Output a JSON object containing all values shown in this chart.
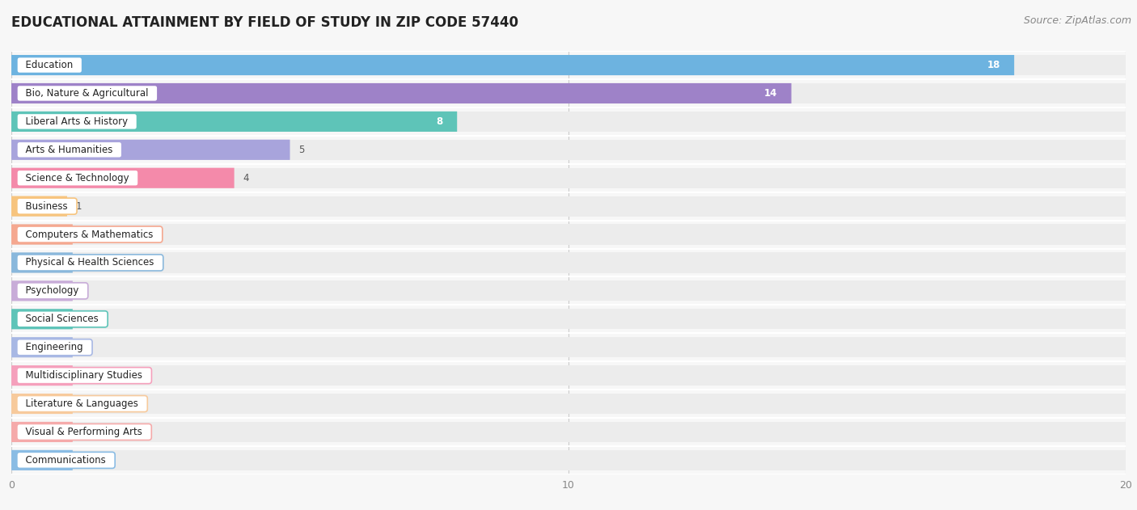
{
  "title": "EDUCATIONAL ATTAINMENT BY FIELD OF STUDY IN ZIP CODE 57440",
  "source": "Source: ZipAtlas.com",
  "categories": [
    "Education",
    "Bio, Nature & Agricultural",
    "Liberal Arts & History",
    "Arts & Humanities",
    "Science & Technology",
    "Business",
    "Computers & Mathematics",
    "Physical & Health Sciences",
    "Psychology",
    "Social Sciences",
    "Engineering",
    "Multidisciplinary Studies",
    "Literature & Languages",
    "Visual & Performing Arts",
    "Communications"
  ],
  "values": [
    18,
    14,
    8,
    5,
    4,
    1,
    0,
    0,
    0,
    0,
    0,
    0,
    0,
    0,
    0
  ],
  "bar_colors": [
    "#6db3e0",
    "#9e82c8",
    "#5ec4b8",
    "#a8a4dc",
    "#f48aaa",
    "#f7c47e",
    "#f5a890",
    "#8ab8dc",
    "#c8acd8",
    "#5ec4b8",
    "#a8b8e4",
    "#f5a0bc",
    "#f7ca9c",
    "#f5aaaa",
    "#8abce4"
  ],
  "xlim": [
    0,
    20
  ],
  "xticks": [
    0,
    10,
    20
  ],
  "background_color": "#f7f7f7",
  "row_bg_color": "#ececec",
  "bar_height": 0.72,
  "title_fontsize": 12,
  "source_fontsize": 9,
  "label_fontsize": 8.5,
  "value_fontsize": 8.5
}
